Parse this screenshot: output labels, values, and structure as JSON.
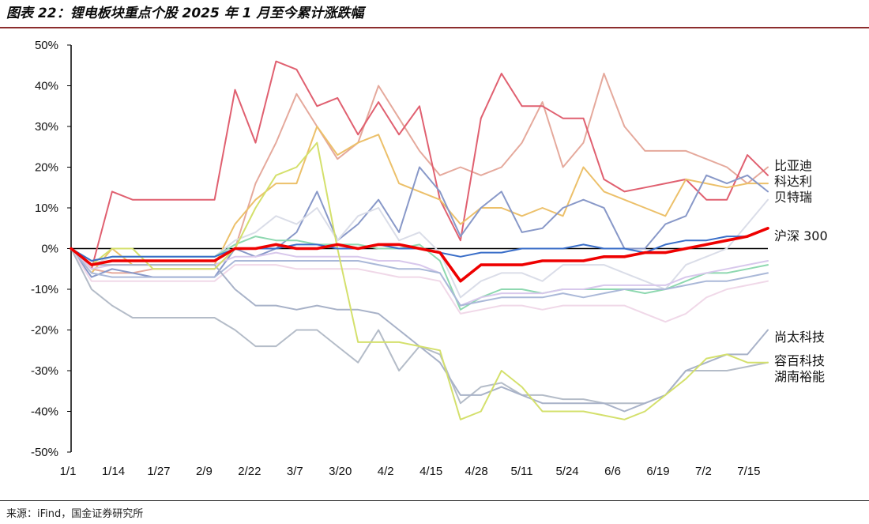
{
  "header": {
    "title": "图表 22：锂电板块重点个股 2025 年 1 月至今累计涨跌幅"
  },
  "footer": {
    "source": "来源：iFind，国金证券研究所"
  },
  "chart_data": {
    "type": "line",
    "title": "图表 22：锂电板块重点个股 2025 年 1 月至今累计涨跌幅",
    "xlabel": "",
    "ylabel": "",
    "ylim": [
      -50,
      50
    ],
    "yticks": [
      50,
      40,
      30,
      20,
      10,
      0,
      -10,
      -20,
      -30,
      -40,
      -50
    ],
    "ytick_labels": [
      "50%",
      "40%",
      "30%",
      "20%",
      "10%",
      "0%",
      "-10%",
      "-20%",
      "-30%",
      "-40%",
      "-50%"
    ],
    "xticks": [
      "1/1",
      "1/14",
      "1/27",
      "2/9",
      "2/22",
      "3/7",
      "3/20",
      "4/2",
      "4/15",
      "4/28",
      "5/11",
      "5/24",
      "6/6",
      "6/19",
      "7/2",
      "7/15"
    ],
    "zero_line": true,
    "series": [
      {
        "name": "",
        "color": "#e5a99c",
        "values": [
          0,
          -5,
          -6,
          -6,
          -5,
          -5,
          -5,
          -5,
          0,
          16,
          26,
          38,
          30,
          22,
          26,
          40,
          32,
          24,
          18,
          20,
          18,
          20,
          26,
          36,
          20,
          26,
          43,
          30,
          24,
          24,
          24,
          22,
          20,
          16,
          20
        ]
      },
      {
        "name": "比亚迪",
        "color": "#e06070",
        "values": [
          0,
          -5,
          14,
          12,
          12,
          12,
          12,
          12,
          39,
          26,
          46,
          44,
          35,
          37,
          28,
          36,
          28,
          35,
          12,
          2,
          32,
          43,
          35,
          35,
          32,
          32,
          17,
          14,
          15,
          16,
          17,
          12,
          12,
          23,
          18
        ]
      },
      {
        "name": "科达利",
        "color": "#ecc06a",
        "values": [
          0,
          -6,
          0,
          -4,
          -4,
          -4,
          -4,
          -4,
          6,
          12,
          16,
          16,
          30,
          23,
          26,
          28,
          16,
          14,
          12,
          6,
          10,
          10,
          8,
          10,
          8,
          20,
          14,
          12,
          10,
          8,
          17,
          16,
          15,
          16,
          16
        ]
      },
      {
        "name": "贝特瑞",
        "color": "#8898c8",
        "values": [
          0,
          -7,
          -5,
          -6,
          -7,
          -7,
          -7,
          -7,
          0,
          -2,
          0,
          4,
          14,
          2,
          6,
          12,
          4,
          20,
          14,
          3,
          10,
          14,
          4,
          5,
          10,
          12,
          10,
          0,
          0,
          6,
          8,
          18,
          16,
          18,
          14
        ]
      },
      {
        "name": "",
        "color": "#dadde8",
        "values": [
          0,
          -4,
          -2,
          -2,
          -2,
          -2,
          -2,
          -2,
          2,
          4,
          8,
          6,
          10,
          2,
          8,
          10,
          2,
          4,
          -1,
          -12,
          -8,
          -6,
          -6,
          -8,
          -4,
          -4,
          -4,
          -6,
          -8,
          -10,
          -4,
          -2,
          0,
          6,
          12
        ]
      },
      {
        "name": "",
        "color": "#8ed8b0",
        "values": [
          0,
          -3,
          -2,
          -2,
          -2,
          -2,
          -2,
          -2,
          1,
          3,
          2,
          2,
          1,
          1,
          1,
          0,
          0,
          1,
          -3,
          -15,
          -12,
          -10,
          -10,
          -11,
          -10,
          -10,
          -10,
          -10,
          -11,
          -10,
          -8,
          -6,
          -6,
          -5,
          -4
        ]
      },
      {
        "name": "",
        "color": "#d8c8ec",
        "values": [
          0,
          -5,
          -4,
          -4,
          -4,
          -4,
          -4,
          -4,
          -2,
          -2,
          -1,
          -2,
          -2,
          -2,
          -2,
          -3,
          -3,
          -4,
          -6,
          -14,
          -12,
          -11,
          -11,
          -11,
          -10,
          -10,
          -9,
          -9,
          -9,
          -9,
          -7,
          -6,
          -5,
          -4,
          -3
        ]
      },
      {
        "name": "",
        "color": "#aab8d8",
        "values": [
          0,
          -6,
          -7,
          -7,
          -7,
          -7,
          -7,
          -7,
          -3,
          -3,
          -3,
          -3,
          -3,
          -3,
          -3,
          -4,
          -5,
          -5,
          -6,
          -14,
          -13,
          -12,
          -12,
          -12,
          -11,
          -12,
          -11,
          -10,
          -10,
          -10,
          -9,
          -8,
          -8,
          -7,
          -6
        ]
      },
      {
        "name": "",
        "color": "#f0d8e8",
        "values": [
          0,
          -8,
          -8,
          -8,
          -8,
          -8,
          -8,
          -8,
          -4,
          -4,
          -4,
          -5,
          -5,
          -5,
          -5,
          -6,
          -7,
          -7,
          -8,
          -16,
          -15,
          -14,
          -14,
          -15,
          -14,
          -14,
          -14,
          -14,
          -16,
          -18,
          -16,
          -12,
          -10,
          -9,
          -8
        ]
      },
      {
        "name": "湖南裕能",
        "color": "#b4bcc8",
        "values": [
          0,
          -10,
          -14,
          -17,
          -17,
          -17,
          -17,
          -17,
          -20,
          -24,
          -24,
          -20,
          -20,
          -24,
          -28,
          -20,
          -30,
          -24,
          -26,
          -38,
          -34,
          -33,
          -36,
          -36,
          -37,
          -37,
          -38,
          -38,
          -38,
          -36,
          -30,
          -30,
          -30,
          -29,
          -28
        ]
      },
      {
        "name": "尚太科技",
        "color": "#a8b2c8",
        "values": [
          0,
          -4,
          -4,
          -4,
          -4,
          -4,
          -4,
          -4,
          -10,
          -14,
          -14,
          -15,
          -14,
          -15,
          -15,
          -16,
          -20,
          -24,
          -28,
          -36,
          -36,
          -34,
          -36,
          -38,
          -38,
          -38,
          -38,
          -40,
          -38,
          -36,
          -30,
          -28,
          -26,
          -26,
          -20
        ]
      },
      {
        "name": "容百科技",
        "color": "#d4e06c",
        "values": [
          0,
          -4,
          0,
          0,
          -5,
          -5,
          -5,
          -5,
          0,
          10,
          18,
          20,
          26,
          0,
          -23,
          -23,
          -23,
          -24,
          -25,
          -42,
          -40,
          -30,
          -34,
          -40,
          -40,
          -40,
          -41,
          -42,
          -40,
          -36,
          -32,
          -27,
          -26,
          -28,
          -28
        ]
      },
      {
        "name": "",
        "color": "#3a6ec8",
        "values": [
          0,
          -3,
          -2,
          -2,
          -2,
          -2,
          -2,
          -2,
          0,
          0,
          0,
          1,
          1,
          0,
          0,
          1,
          0,
          0,
          -1,
          -2,
          -1,
          -1,
          0,
          0,
          0,
          1,
          0,
          0,
          -1,
          1,
          2,
          2,
          3,
          3,
          5
        ]
      },
      {
        "name": "沪深 300",
        "color": "#ee0000",
        "values": [
          0,
          -4,
          -3,
          -3,
          -3,
          -3,
          -3,
          -3,
          0,
          0,
          1,
          0,
          0,
          1,
          0,
          1,
          1,
          0,
          -1,
          -8,
          -4,
          -4,
          -4,
          -3,
          -3,
          -3,
          -2,
          -2,
          -1,
          -1,
          0,
          1,
          2,
          3,
          5
        ]
      }
    ],
    "legend_labels": [
      "比亚迪",
      "科达利",
      "贝特瑞",
      "沪深 300",
      "尚太科技",
      "容百科技",
      "湖南裕能"
    ]
  }
}
